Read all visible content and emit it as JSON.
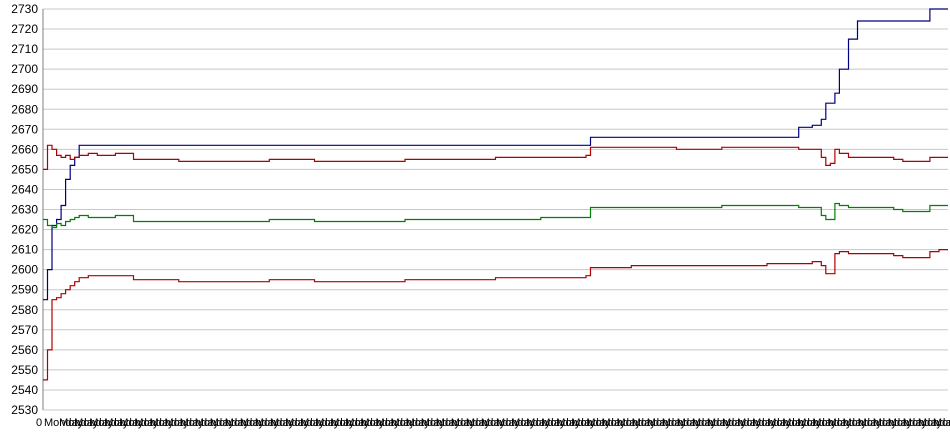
{
  "chart_data": {
    "type": "line",
    "title": "",
    "xlabel": "",
    "ylabel": "",
    "ylim": [
      2530,
      2730
    ],
    "yticks": [
      2530,
      2540,
      2550,
      2560,
      2570,
      2580,
      2590,
      2600,
      2610,
      2620,
      2630,
      2640,
      2650,
      2660,
      2670,
      2680,
      2690,
      2700,
      2710,
      2720,
      2730
    ],
    "grid": true,
    "legend": "none",
    "x_label_text": "Monday",
    "x_label_first": "0",
    "x_label_count": 60,
    "x": [
      0,
      0.5,
      1,
      1.5,
      2,
      2.5,
      3,
      3.5,
      4,
      5,
      6,
      8,
      10,
      15,
      20,
      25,
      30,
      35,
      40,
      45,
      50,
      55,
      60,
      60.5,
      65,
      70,
      75,
      80,
      83,
      83.5,
      85,
      86,
      86.5,
      87,
      87.5,
      88,
      89,
      90,
      94,
      95,
      97,
      98,
      99,
      100
    ],
    "series": [
      {
        "color": "#000080",
        "values": [
          2585,
          2600,
          2622,
          2625,
          2632,
          2645,
          2652,
          2656,
          2662,
          2662,
          2662,
          2662,
          2662,
          2662,
          2662,
          2662,
          2662,
          2662,
          2662,
          2662,
          2662,
          2662,
          2662,
          2666,
          2666,
          2666,
          2666,
          2666,
          2666,
          2671,
          2672,
          2675,
          2683,
          2683,
          2688,
          2700,
          2715,
          2724,
          2724,
          2724,
          2724,
          2730,
          2730,
          2730
        ]
      },
      {
        "color": "#b00000",
        "values": [
          2650,
          2662,
          2660,
          2657,
          2656,
          2657,
          2655,
          2656,
          2657,
          2658,
          2657,
          2658,
          2655,
          2654,
          2654,
          2655,
          2654,
          2654,
          2655,
          2655,
          2656,
          2656,
          2657,
          2661,
          2661,
          2660,
          2661,
          2661,
          2661,
          2660,
          2660,
          2656,
          2652,
          2653,
          2660,
          2658,
          2656,
          2656,
          2655,
          2654,
          2654,
          2656,
          2656,
          2656
        ]
      },
      {
        "color": "#008000",
        "values": [
          2625,
          2622,
          2621,
          2623,
          2622,
          2624,
          2625,
          2626,
          2627,
          2626,
          2626,
          2627,
          2624,
          2624,
          2624,
          2625,
          2624,
          2624,
          2625,
          2625,
          2625,
          2626,
          2626,
          2631,
          2631,
          2631,
          2632,
          2632,
          2632,
          2631,
          2631,
          2627,
          2625,
          2625,
          2633,
          2632,
          2631,
          2631,
          2630,
          2629,
          2629,
          2632,
          2632,
          2632
        ]
      },
      {
        "color": "#b00000",
        "values": [
          2545,
          2560,
          2585,
          2586,
          2588,
          2590,
          2592,
          2594,
          2596,
          2597,
          2597,
          2597,
          2595,
          2594,
          2594,
          2595,
          2594,
          2594,
          2595,
          2595,
          2596,
          2596,
          2597,
          2601,
          2602,
          2602,
          2602,
          2603,
          2603,
          2603,
          2604,
          2602,
          2598,
          2598,
          2608,
          2609,
          2608,
          2608,
          2607,
          2606,
          2606,
          2609,
          2610,
          2610
        ]
      }
    ]
  }
}
